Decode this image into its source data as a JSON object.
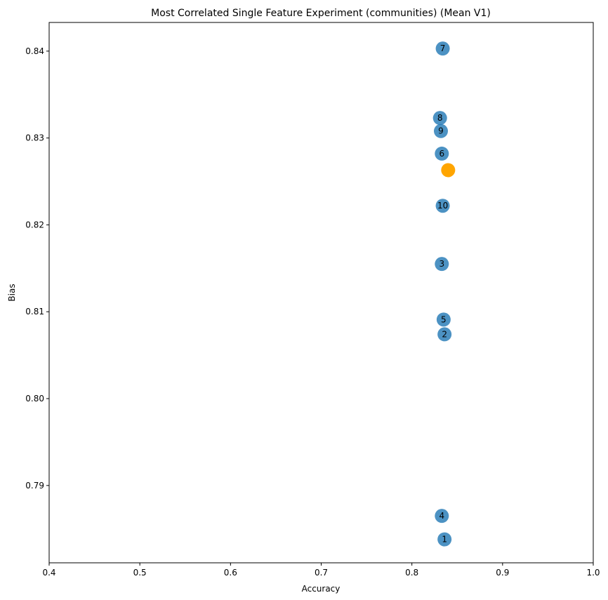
{
  "chart_data": {
    "type": "scatter",
    "title": "Most Correlated Single Feature Experiment (communities) (Mean V1)",
    "xlabel": "Accuracy",
    "ylabel": "Bias",
    "xlim": [
      0.4,
      1.0
    ],
    "ylim": [
      0.7811,
      0.8433
    ],
    "xticks": [
      0.4,
      0.5,
      0.6,
      0.7,
      0.8,
      0.9,
      1.0
    ],
    "xtick_labels": [
      "0.4",
      "0.5",
      "0.6",
      "0.7",
      "0.8",
      "0.9",
      "1.0"
    ],
    "yticks": [
      0.79,
      0.8,
      0.81,
      0.82,
      0.83,
      0.84
    ],
    "ytick_labels": [
      "0.79",
      "0.80",
      "0.81",
      "0.82",
      "0.83",
      "0.84"
    ],
    "grid": false,
    "series": [
      {
        "color": "#1f77b4",
        "points": [
          {
            "label": "7",
            "x": 0.834,
            "y": 0.8403
          },
          {
            "label": "8",
            "x": 0.831,
            "y": 0.8323
          },
          {
            "label": "9",
            "x": 0.832,
            "y": 0.8308
          },
          {
            "label": "6",
            "x": 0.833,
            "y": 0.8282
          },
          {
            "label": "10",
            "x": 0.834,
            "y": 0.8222
          },
          {
            "label": "3",
            "x": 0.833,
            "y": 0.8155
          },
          {
            "label": "5",
            "x": 0.835,
            "y": 0.8091
          },
          {
            "label": "2",
            "x": 0.836,
            "y": 0.8074
          },
          {
            "label": "4",
            "x": 0.833,
            "y": 0.7865
          },
          {
            "label": "1",
            "x": 0.836,
            "y": 0.7838
          }
        ]
      },
      {
        "color": "#ffa500",
        "points": [
          {
            "label": "",
            "x": 0.84,
            "y": 0.8263
          }
        ]
      }
    ]
  }
}
